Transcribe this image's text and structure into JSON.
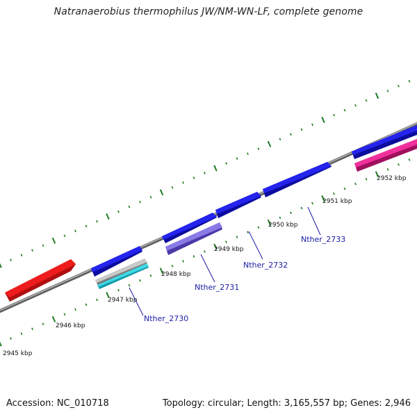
{
  "title": "Natranaerobius thermophilus JW/NM-WN-LF, complete genome",
  "footer": {
    "accession": "Accession: NC_010718",
    "summary": "Topology: circular; Length: 3,165,557 bp; Genes: 2,946"
  },
  "map": {
    "kbp_labels": [
      "2945 kbp",
      "2946 kbp",
      "2947 kbp",
      "2948 kbp",
      "2949 kbp",
      "2950 kbp",
      "2951 kbp",
      "2952 kbp"
    ],
    "gene_labels": [
      "Nther_2730",
      "Nther_2731",
      "Nther_2732",
      "Nther_2733"
    ],
    "colors": {
      "backbone": "#8a8a8a",
      "tick": "#1e7a1e",
      "forward_gene": "#1a1ae6",
      "reverse_gene": "#e81818",
      "purple_feature": "#7a6ad8",
      "cyan_feature": "#30c8d8",
      "gray_feature": "#9a9a9a",
      "pink_feature": "#e8208c",
      "label_line": "#1a1aa6"
    }
  }
}
